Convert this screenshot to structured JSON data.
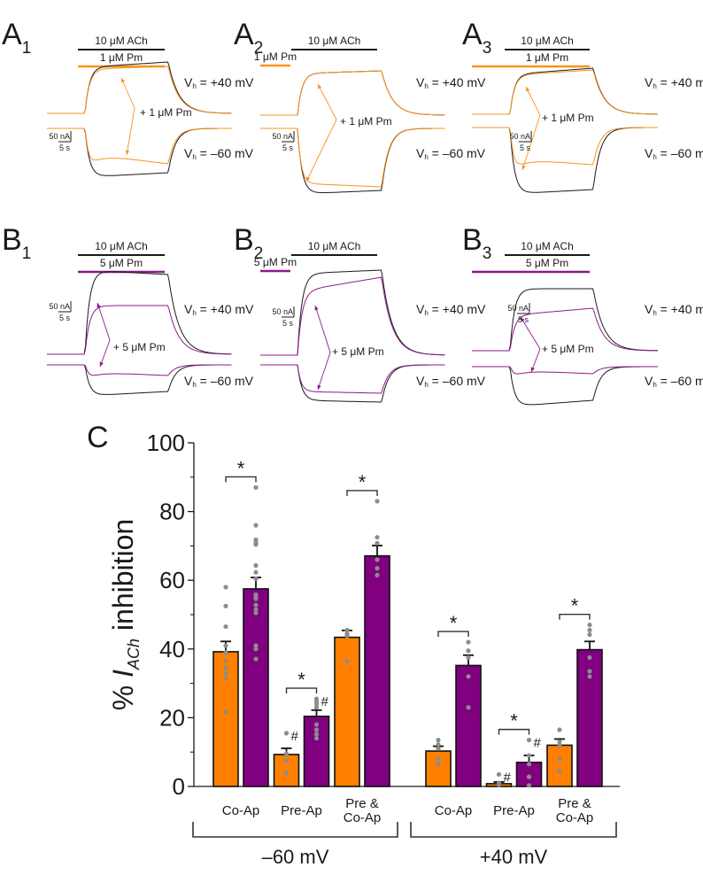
{
  "colors": {
    "control": "#1a1a1a",
    "pm1": "#f7941d",
    "pm5": "#8b1a8b",
    "bar_orange": "#ff8000",
    "bar_purple": "#800080",
    "dots": "#8c8c8c"
  },
  "traces": {
    "rows": [
      {
        "drug_label": "1 μM Pm",
        "annotation": "+ 1 μM Pm",
        "color_key": "pm1",
        "panels": [
          {
            "letter": "A",
            "sub": "1",
            "protocol": "co"
          },
          {
            "letter": "A",
            "sub": "2",
            "protocol": "pre"
          },
          {
            "letter": "A",
            "sub": "3",
            "protocol": "prepost"
          }
        ]
      },
      {
        "drug_label": "5 μM Pm",
        "annotation": "+ 5 μM Pm",
        "color_key": "pm5",
        "panels": [
          {
            "letter": "B",
            "sub": "1",
            "protocol": "co"
          },
          {
            "letter": "B",
            "sub": "2",
            "protocol": "pre"
          },
          {
            "letter": "B",
            "sub": "3",
            "protocol": "prepost"
          }
        ]
      }
    ],
    "ach_label": "10 μM ACh",
    "vh_pos": {
      "prefix": "V",
      "sub": "h",
      "value": " = +40 mV"
    },
    "vh_neg": {
      "prefix": "V",
      "sub": "h",
      "value": " = –60 mV"
    },
    "scale_current": "50 nA",
    "scale_time": "5 s"
  },
  "chart_data": {
    "type": "bar",
    "panel_letter": "C",
    "ylabel_prefix": "% ",
    "ylabel_italic": "I",
    "ylabel_sub": "ACh",
    "ylabel_suffix": " inhibition",
    "ylim": [
      0,
      100
    ],
    "yticks": [
      0,
      20,
      40,
      60,
      80,
      100
    ],
    "minor_ticks": [
      10,
      30,
      50,
      70,
      90
    ],
    "legend": [
      {
        "name": "1 μM Pm",
        "color": "#ff8000"
      },
      {
        "name": "5 μM Pm",
        "color": "#800080"
      }
    ],
    "groups": [
      {
        "label": "–60 mV",
        "categories": [
          {
            "label_lines": [
              "Co-Ap"
            ],
            "significance": "*",
            "bars": [
              {
                "series": "1 μM Pm",
                "value": 39.2,
                "sem": 3.0,
                "hash": false,
                "points": [
                  58.0,
                  52.5,
                  46.5,
                  41.0,
                  39.0,
                  36.5,
                  34.5,
                  33.0,
                  31.5,
                  21.5
                ]
              },
              {
                "series": "5 μM Pm",
                "value": 57.5,
                "sem": 3.3,
                "hash": false,
                "points": [
                  87.0,
                  76.0,
                  71.8,
                  71.0,
                  70.4,
                  64.3,
                  62.3,
                  60.4,
                  55.8,
                  55.3,
                  54.6,
                  52.8,
                  51.5,
                  50.5,
                  41.0,
                  40.0,
                  37.1
                ]
              }
            ]
          },
          {
            "label_lines": [
              "Pre-Ap"
            ],
            "significance": "*",
            "bars": [
              {
                "series": "1 μM Pm",
                "value": 9.3,
                "sem": 1.8,
                "hash": true,
                "points": [
                  15.5,
                  9.5,
                  7.5,
                  4.0
                ]
              },
              {
                "series": "5 μM Pm",
                "value": 20.4,
                "sem": 1.8,
                "hash": true,
                "points": [
                  25.5,
                  24.8,
                  24.0,
                  23.0,
                  18.0,
                  16.5,
                  15.2,
                  14.0
                ]
              }
            ]
          },
          {
            "label_lines": [
              "Pre &",
              "Co-Ap"
            ],
            "significance": "*",
            "bars": [
              {
                "series": "1 μM Pm",
                "value": 43.4,
                "sem": 2.0,
                "hash": false,
                "points": [
                  45.5,
                  44.5,
                  43.8,
                  36.5
                ]
              },
              {
                "series": "5 μM Pm",
                "value": 67.1,
                "sem": 3.0,
                "hash": false,
                "points": [
                  83.0,
                  72.5,
                  70.8,
                  66.0,
                  63.5,
                  61.5
                ]
              }
            ]
          }
        ]
      },
      {
        "label": "+40 mV",
        "categories": [
          {
            "label_lines": [
              "Co-Ap"
            ],
            "significance": "*",
            "bars": [
              {
                "series": "1 μM Pm",
                "value": 10.3,
                "sem": 1.4,
                "hash": false,
                "points": [
                  13.5,
                  12.2,
                  11.0,
                  8.0,
                  6.5
                ]
              },
              {
                "series": "5 μM Pm",
                "value": 35.2,
                "sem": 3.0,
                "hash": false,
                "points": [
                  42.0,
                  39.5,
                  37.5,
                  32.0,
                  23.0
                ]
              }
            ]
          },
          {
            "label_lines": [
              "Pre-Ap"
            ],
            "significance": "*",
            "bars": [
              {
                "series": "1 μM Pm",
                "value": 0.8,
                "sem": 0.5,
                "hash": true,
                "points": [
                  3.5,
                  1.0,
                  0.5
                ]
              },
              {
                "series": "5 μM Pm",
                "value": 7.0,
                "sem": 2.0,
                "hash": true,
                "points": [
                  13.5,
                  9.0,
                  6.5,
                  2.8,
                  0.3
                ]
              }
            ]
          },
          {
            "label_lines": [
              "Pre &",
              "Co-Ap"
            ],
            "significance": "*",
            "bars": [
              {
                "series": "1 μM Pm",
                "value": 12.0,
                "sem": 1.8,
                "hash": false,
                "points": [
                  16.5,
                  13.0,
                  12.0,
                  8.0,
                  4.5
                ]
              },
              {
                "series": "5 μM Pm",
                "value": 39.8,
                "sem": 2.4,
                "hash": false,
                "points": [
                  47.0,
                  45.5,
                  44.2,
                  37.5,
                  33.5,
                  32.0
                ]
              }
            ]
          }
        ]
      }
    ]
  }
}
